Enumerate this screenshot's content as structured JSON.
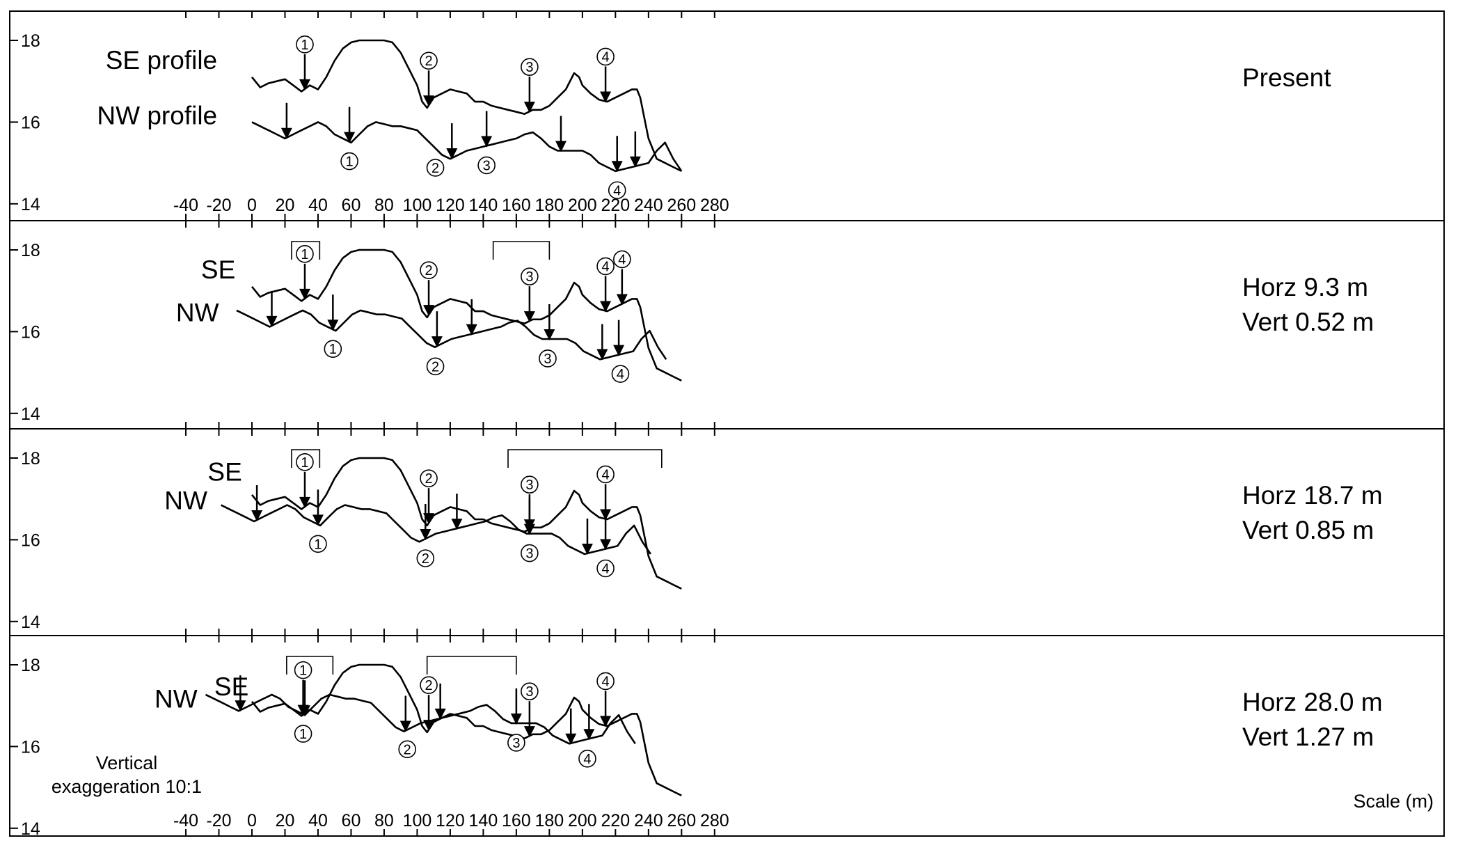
{
  "chart_data": {
    "type": "line",
    "xlabel": "Scale (m)",
    "x_ticks": [
      -40,
      -20,
      0,
      20,
      40,
      60,
      80,
      100,
      120,
      140,
      160,
      180,
      200,
      220,
      240,
      260,
      280
    ],
    "y_ticks": [
      18,
      16,
      14
    ],
    "xlim": [
      -45,
      285
    ],
    "ylim": [
      13.8,
      18.4
    ],
    "grid": false,
    "annotation": "Vertical exaggeration 10:1",
    "panels": [
      {
        "label": "Present",
        "label_lines": [
          "Present"
        ],
        "nw_offset": [
          0,
          0
        ],
        "series": [
          {
            "name": "SE profile",
            "x": [
              0,
              5,
              10,
              15,
              20,
              25,
              30,
              35,
              40,
              45,
              50,
              55,
              60,
              65,
              70,
              75,
              80,
              85,
              90,
              95,
              100,
              103,
              106,
              110,
              115,
              120,
              125,
              130,
              135,
              140,
              145,
              150,
              155,
              160,
              165,
              170,
              175,
              180,
              185,
              190,
              195,
              198,
              200,
              205,
              210,
              215,
              220,
              225,
              230,
              233,
              235,
              237,
              240,
              245,
              250,
              255,
              260
            ],
            "y": [
              17.1,
              16.85,
              16.95,
              17.0,
              17.05,
              16.9,
              16.75,
              16.9,
              16.8,
              17.1,
              17.5,
              17.8,
              17.95,
              18.0,
              18.0,
              18.0,
              18.0,
              17.95,
              17.7,
              17.3,
              16.9,
              16.5,
              16.35,
              16.6,
              16.7,
              16.8,
              16.75,
              16.7,
              16.5,
              16.5,
              16.4,
              16.35,
              16.3,
              16.25,
              16.2,
              16.3,
              16.3,
              16.4,
              16.6,
              16.8,
              17.2,
              17.1,
              16.9,
              16.7,
              16.55,
              16.5,
              16.6,
              16.7,
              16.8,
              16.8,
              16.6,
              16.2,
              15.6,
              15.1,
              15.0,
              14.9,
              14.8
            ]
          },
          {
            "name": "NW profile",
            "x": [
              0,
              5,
              10,
              15,
              20,
              25,
              30,
              35,
              40,
              45,
              50,
              55,
              60,
              65,
              70,
              75,
              80,
              85,
              90,
              95,
              100,
              105,
              110,
              115,
              120,
              125,
              130,
              135,
              140,
              145,
              150,
              155,
              160,
              165,
              170,
              175,
              180,
              185,
              190,
              195,
              200,
              205,
              210,
              215,
              220,
              225,
              230,
              235,
              240,
              245,
              250,
              255,
              260
            ],
            "y": [
              16.0,
              15.9,
              15.8,
              15.7,
              15.6,
              15.7,
              15.8,
              15.9,
              16.0,
              15.9,
              15.7,
              15.6,
              15.5,
              15.7,
              15.9,
              16.0,
              15.95,
              15.9,
              15.9,
              15.85,
              15.8,
              15.6,
              15.4,
              15.2,
              15.1,
              15.2,
              15.3,
              15.35,
              15.4,
              15.45,
              15.5,
              15.55,
              15.6,
              15.7,
              15.75,
              15.6,
              15.4,
              15.3,
              15.3,
              15.3,
              15.3,
              15.2,
              15.0,
              14.9,
              14.8,
              14.85,
              14.9,
              14.95,
              15.0,
              15.3,
              15.5,
              15.1,
              14.8
            ]
          }
        ],
        "brackets": [],
        "se_markers": [
          {
            "x": 32,
            "label": "①"
          },
          {
            "x": 107,
            "label": "②"
          },
          {
            "x": 168,
            "label": "③"
          },
          {
            "x": 214,
            "label": "④"
          }
        ],
        "nw_arrows": [
          21,
          59,
          121,
          142,
          187,
          221,
          232
        ],
        "nw_labels": [
          {
            "x": 59,
            "label": "①"
          },
          {
            "x": 111,
            "label": "②"
          },
          {
            "x": 142,
            "label": "③"
          },
          {
            "x": 221,
            "label": "④"
          }
        ],
        "curve_labels": [
          {
            "text": "SE profile",
            "x": -21,
            "y": 17.3
          },
          {
            "text": "NW profile",
            "x": -21,
            "y": 15.95
          }
        ]
      },
      {
        "label": "Horz 9.3 m / Vert 0.52 m",
        "label_lines": [
          "Horz 9.3 m",
          "Vert 0.52 m"
        ],
        "nw_offset": [
          -9.3,
          0.52
        ],
        "series": [
          {
            "name": "SE",
            "ref": "SE profile"
          },
          {
            "name": "NW",
            "ref": "NW profile"
          }
        ],
        "brackets": [
          [
            24,
            41
          ],
          [
            146,
            180
          ]
        ],
        "se_markers": [
          {
            "x": 32,
            "label": "①"
          },
          {
            "x": 107,
            "label": "②"
          },
          {
            "x": 168,
            "label": "③"
          },
          {
            "x": 214,
            "label": "④"
          },
          {
            "x": 224,
            "label": "④"
          }
        ],
        "nw_arrows": [
          12,
          49,
          112,
          133,
          180,
          212,
          222
        ],
        "nw_labels": [
          {
            "x": 49,
            "label": "①"
          },
          {
            "x": 111,
            "label": "②"
          },
          {
            "x": 179,
            "label": "③"
          },
          {
            "x": 223,
            "label": "④"
          }
        ],
        "curve_labels": [
          {
            "text": "SE",
            "x": -10,
            "y": 17.3
          },
          {
            "text": "NW",
            "x": -20,
            "y": 16.25
          }
        ]
      },
      {
        "label": "Horz 18.7 m / Vert 0.85 m",
        "label_lines": [
          "Horz 18.7 m",
          "Vert 0.85 m"
        ],
        "nw_offset": [
          -18.7,
          0.85
        ],
        "series": [
          {
            "name": "SE",
            "ref": "SE profile"
          },
          {
            "name": "NW",
            "ref": "NW profile"
          }
        ],
        "brackets": [
          [
            24,
            41
          ],
          [
            155,
            248
          ]
        ],
        "se_markers": [
          {
            "x": 32,
            "label": "①"
          },
          {
            "x": 107,
            "label": "②"
          },
          {
            "x": 168,
            "label": "③"
          },
          {
            "x": 214,
            "label": "④"
          }
        ],
        "nw_arrows": [
          3,
          40,
          105,
          124,
          168,
          203,
          214
        ],
        "nw_labels": [
          {
            "x": 40,
            "label": "①"
          },
          {
            "x": 105,
            "label": "②"
          },
          {
            "x": 168,
            "label": "③"
          },
          {
            "x": 214,
            "label": "④"
          }
        ],
        "curve_labels": [
          {
            "text": "SE",
            "x": -6,
            "y": 17.45
          },
          {
            "text": "NW",
            "x": -27,
            "y": 16.75
          }
        ]
      },
      {
        "label": "Horz 28.0 m / Vert 1.27 m",
        "label_lines": [
          "Horz 28.0 m",
          "Vert 1.27 m"
        ],
        "nw_offset": [
          -28.0,
          1.27
        ],
        "series": [
          {
            "name": "SE",
            "ref": "SE profile"
          },
          {
            "name": "NW",
            "ref": "NW profile"
          }
        ],
        "brackets": [
          [
            21,
            49
          ],
          [
            106,
            160
          ]
        ],
        "se_markers": [
          {
            "x": 31,
            "label": "①"
          },
          {
            "x": 107,
            "label": "②"
          },
          {
            "x": 168,
            "label": "③"
          },
          {
            "x": 214,
            "label": "④"
          }
        ],
        "nw_arrows": [
          -7,
          32,
          93,
          114,
          160,
          193,
          204
        ],
        "nw_labels": [
          {
            "x": 31,
            "label": "①"
          },
          {
            "x": 94,
            "label": "②"
          },
          {
            "x": 160,
            "label": "③"
          },
          {
            "x": 203,
            "label": "④"
          }
        ],
        "curve_labels": [
          {
            "text": "NW",
            "x": -33,
            "y": 16.95
          },
          {
            "text": "SE",
            "x": -2,
            "y": 17.25
          }
        ]
      }
    ]
  }
}
